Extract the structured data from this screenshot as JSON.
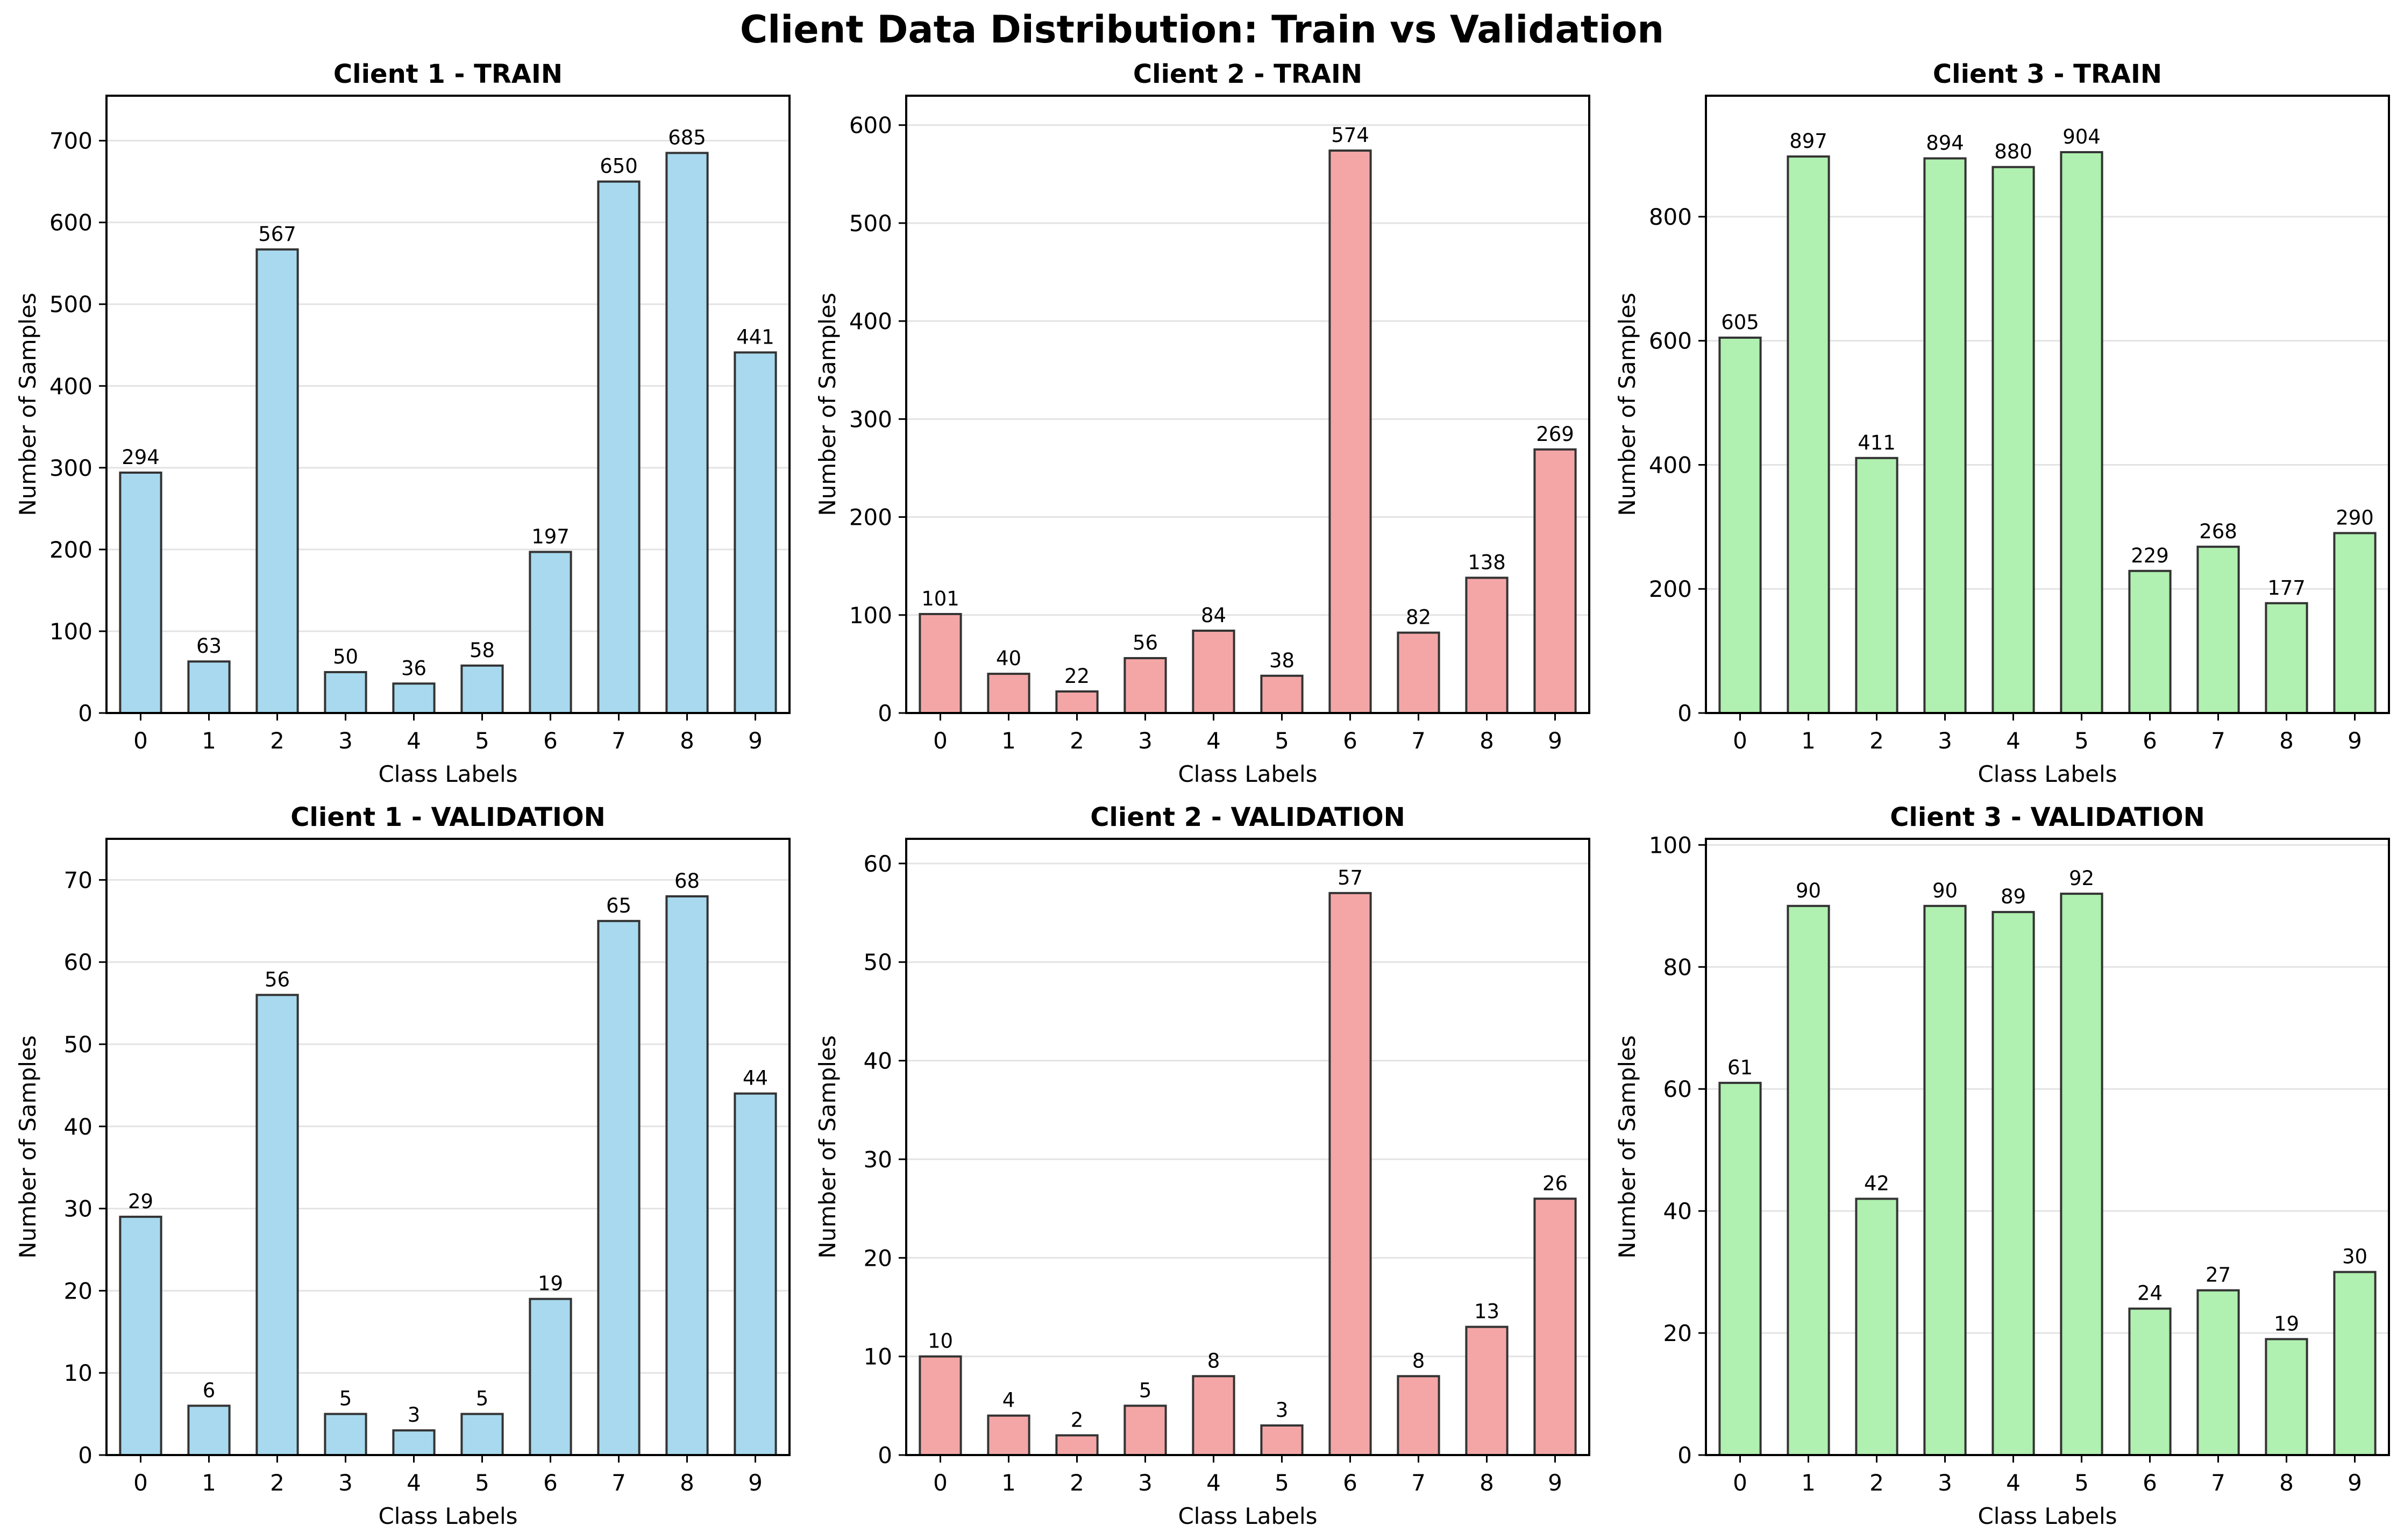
{
  "figure_title": "Client Data Distribution: Train vs Validation",
  "chart_data": [
    {
      "type": "bar",
      "title": "Client 1 - TRAIN",
      "xlabel": "Class Labels",
      "ylabel": "Number of Samples",
      "categories": [
        "0",
        "1",
        "2",
        "3",
        "4",
        "5",
        "6",
        "7",
        "8",
        "9"
      ],
      "values": [
        294,
        63,
        567,
        50,
        36,
        58,
        197,
        650,
        685,
        441
      ],
      "ylim": [
        0,
        755
      ],
      "yticks": [
        0,
        100,
        200,
        300,
        400,
        500,
        600,
        700
      ],
      "color": "#a8d9ee",
      "grid": "y",
      "legend": "none"
    },
    {
      "type": "bar",
      "title": "Client 2 - TRAIN",
      "xlabel": "Class Labels",
      "ylabel": "Number of Samples",
      "categories": [
        "0",
        "1",
        "2",
        "3",
        "4",
        "5",
        "6",
        "7",
        "8",
        "9"
      ],
      "values": [
        101,
        40,
        22,
        56,
        84,
        38,
        574,
        82,
        138,
        269
      ],
      "ylim": [
        0,
        630
      ],
      "yticks": [
        0,
        100,
        200,
        300,
        400,
        500,
        600
      ],
      "color": "#f4a6a6",
      "grid": "y",
      "legend": "none"
    },
    {
      "type": "bar",
      "title": "Client 3 - TRAIN",
      "xlabel": "Class Labels",
      "ylabel": "Number of Samples",
      "categories": [
        "0",
        "1",
        "2",
        "3",
        "4",
        "5",
        "6",
        "7",
        "8",
        "9"
      ],
      "values": [
        605,
        897,
        411,
        894,
        880,
        904,
        229,
        268,
        177,
        290
      ],
      "ylim": [
        0,
        995
      ],
      "yticks": [
        0,
        200,
        400,
        600,
        800
      ],
      "color": "#b0f0b0",
      "grid": "y",
      "legend": "none"
    },
    {
      "type": "bar",
      "title": "Client 1 - VALIDATION",
      "xlabel": "Class Labels",
      "ylabel": "Number of Samples",
      "categories": [
        "0",
        "1",
        "2",
        "3",
        "4",
        "5",
        "6",
        "7",
        "8",
        "9"
      ],
      "values": [
        29,
        6,
        56,
        5,
        3,
        5,
        19,
        65,
        68,
        44
      ],
      "ylim": [
        0,
        75
      ],
      "yticks": [
        0,
        10,
        20,
        30,
        40,
        50,
        60,
        70
      ],
      "color": "#a8d9ee",
      "grid": "y",
      "legend": "none"
    },
    {
      "type": "bar",
      "title": "Client 2 - VALIDATION",
      "xlabel": "Class Labels",
      "ylabel": "Number of Samples",
      "categories": [
        "0",
        "1",
        "2",
        "3",
        "4",
        "5",
        "6",
        "7",
        "8",
        "9"
      ],
      "values": [
        10,
        4,
        2,
        5,
        8,
        3,
        57,
        8,
        13,
        26
      ],
      "ylim": [
        0,
        62.5
      ],
      "yticks": [
        0,
        10,
        20,
        30,
        40,
        50,
        60
      ],
      "color": "#f4a6a6",
      "grid": "y",
      "legend": "none"
    },
    {
      "type": "bar",
      "title": "Client 3 - VALIDATION",
      "xlabel": "Class Labels",
      "ylabel": "Number of Samples",
      "categories": [
        "0",
        "1",
        "2",
        "3",
        "4",
        "5",
        "6",
        "7",
        "8",
        "9"
      ],
      "values": [
        61,
        90,
        42,
        90,
        89,
        92,
        24,
        27,
        19,
        30
      ],
      "ylim": [
        0,
        101
      ],
      "yticks": [
        0,
        20,
        40,
        60,
        80,
        100
      ],
      "color": "#b0f0b0",
      "grid": "y",
      "legend": "none"
    }
  ]
}
